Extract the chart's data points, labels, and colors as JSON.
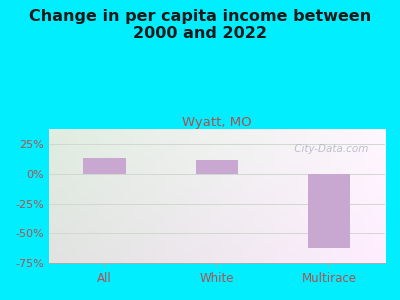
{
  "title": "Change in per capita income between\n2000 and 2022",
  "subtitle": "Wyatt, MO",
  "categories": [
    "All",
    "White",
    "Multirace"
  ],
  "values": [
    13.0,
    12.0,
    -62.0
  ],
  "bar_color": "#c8a8d0",
  "title_fontsize": 11.5,
  "title_color": "#1a1a1a",
  "subtitle_fontsize": 9.5,
  "subtitle_color": "#b05050",
  "tick_label_color": "#b05050",
  "background_outer": "#00eeff",
  "ylim": [
    -75,
    37.5
  ],
  "yticks": [
    25,
    0,
    -25,
    -50,
    -75
  ],
  "ytick_labels": [
    "25%",
    "0%",
    "-25%",
    "-50%",
    "-75%"
  ],
  "watermark": " City-Data.com",
  "grid_color": "#d0d8d0",
  "plot_bg_color_top_left": "#c8e8c0",
  "plot_bg_color_top_right": "#f0f8f0",
  "plot_bg_color_bottom_left": "#c8e8c0",
  "plot_bg_color_bottom_right": "#f0f8f0"
}
